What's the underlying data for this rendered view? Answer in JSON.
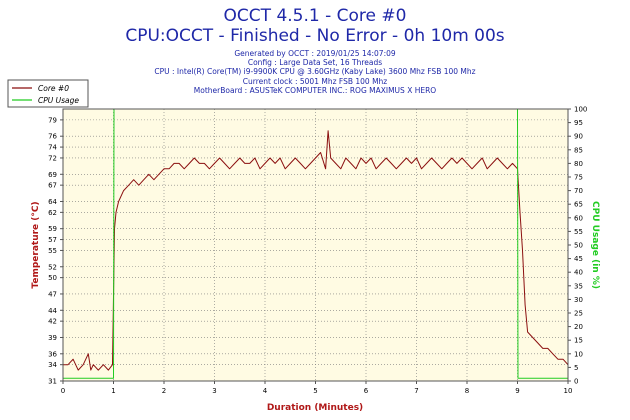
{
  "header": {
    "title": "OCCT 4.5.1 - Core #0",
    "subtitle": "CPU:OCCT - Finished - No Error - 0h 10m 00s",
    "info_lines": [
      "Generated by OCCT : 2019/01/25 14:07:09",
      "Config : Large Data Set, 16 Threads",
      "CPU : Intel(R) Core(TM) i9-9900K CPU @ 3.60GHz (Kaby Lake) 3600 Mhz FSB 100 Mhz",
      "Current clock : 5001 Mhz FSB 100 Mhz",
      "MotherBoard : ASUSTeK COMPUTER INC.: ROG MAXIMUS X HERO"
    ]
  },
  "colors": {
    "temperature": "#8b0f0f",
    "cpu_usage": "#22cc22",
    "plot_background": "#fffbe3",
    "grid": "#7a7a7a",
    "title_text": "#1f28a8",
    "axis_label_left": "#b01818",
    "axis_label_right": "#22cc22"
  },
  "chart_data": {
    "type": "line",
    "xlabel": "Duration (Minutes)",
    "ylabel": "Temperature (°C)",
    "y2label": "CPU Usage (in %)",
    "xlim": [
      0,
      10
    ],
    "ylim": [
      31,
      81
    ],
    "y2lim": [
      0,
      100
    ],
    "x_ticks": [
      0,
      1,
      2,
      3,
      4,
      5,
      6,
      7,
      8,
      9,
      10
    ],
    "y_ticks": [
      31,
      34,
      36,
      39,
      42,
      44,
      47,
      50,
      52,
      55,
      57,
      59,
      62,
      64,
      67,
      69,
      72,
      74,
      76,
      79
    ],
    "y2_ticks": [
      0,
      5,
      10,
      15,
      20,
      25,
      30,
      35,
      40,
      45,
      50,
      55,
      60,
      65,
      70,
      75,
      80,
      85,
      90,
      95,
      100
    ],
    "grid": true,
    "legend": {
      "position": "top-left",
      "entries": [
        "Core #0",
        "CPU Usage"
      ]
    },
    "series": [
      {
        "name": "Core #0",
        "axis": "left",
        "x": [
          0,
          0.1,
          0.2,
          0.3,
          0.4,
          0.5,
          0.55,
          0.6,
          0.7,
          0.8,
          0.9,
          0.98,
          1.02,
          1.05,
          1.1,
          1.2,
          1.3,
          1.4,
          1.5,
          1.6,
          1.7,
          1.8,
          1.9,
          2.0,
          2.1,
          2.2,
          2.3,
          2.4,
          2.5,
          2.6,
          2.7,
          2.8,
          2.9,
          3.0,
          3.1,
          3.2,
          3.3,
          3.4,
          3.5,
          3.6,
          3.7,
          3.8,
          3.9,
          4.0,
          4.1,
          4.2,
          4.3,
          4.4,
          4.5,
          4.6,
          4.7,
          4.8,
          4.9,
          5.0,
          5.1,
          5.2,
          5.25,
          5.3,
          5.4,
          5.5,
          5.6,
          5.7,
          5.8,
          5.9,
          6.0,
          6.1,
          6.2,
          6.3,
          6.4,
          6.5,
          6.6,
          6.7,
          6.8,
          6.9,
          7.0,
          7.1,
          7.2,
          7.3,
          7.4,
          7.5,
          7.6,
          7.7,
          7.8,
          7.9,
          8.0,
          8.1,
          8.2,
          8.3,
          8.4,
          8.5,
          8.6,
          8.7,
          8.8,
          8.9,
          9.0,
          9.05,
          9.1,
          9.15,
          9.2,
          9.3,
          9.4,
          9.5,
          9.6,
          9.7,
          9.8,
          9.9,
          10.0
        ],
        "values": [
          34,
          34,
          35,
          33,
          34,
          36,
          33,
          34,
          33,
          34,
          33,
          34,
          59,
          62,
          64,
          66,
          67,
          68,
          67,
          68,
          69,
          68,
          69,
          70,
          70,
          71,
          71,
          70,
          71,
          72,
          71,
          71,
          70,
          71,
          72,
          71,
          70,
          71,
          72,
          71,
          71,
          72,
          70,
          71,
          72,
          71,
          72,
          70,
          71,
          72,
          71,
          70,
          71,
          72,
          73,
          70,
          77,
          72,
          71,
          70,
          72,
          71,
          70,
          72,
          71,
          72,
          70,
          71,
          72,
          71,
          70,
          71,
          72,
          71,
          72,
          70,
          71,
          72,
          71,
          70,
          71,
          72,
          71,
          72,
          71,
          70,
          71,
          72,
          70,
          71,
          72,
          71,
          70,
          71,
          70,
          62,
          55,
          45,
          40,
          39,
          38,
          37,
          37,
          36,
          35,
          35,
          34
        ]
      },
      {
        "name": "CPU Usage",
        "axis": "right",
        "x": [
          0,
          0.99,
          1.0,
          1.01,
          8.99,
          9.0,
          9.01,
          10.0
        ],
        "values": [
          1,
          1,
          1,
          100,
          100,
          100,
          1,
          1
        ]
      }
    ]
  }
}
